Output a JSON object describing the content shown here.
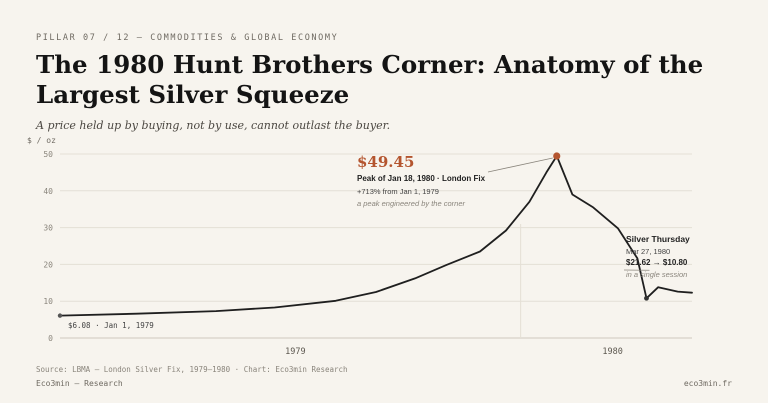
{
  "header": {
    "eyebrow": "PILLAR 07 / 12 — COMMODITIES & GLOBAL ECONOMY",
    "title": "The 1980 Hunt Brothers Corner: Anatomy of the Largest Silver Squeeze",
    "subtitle": "A price held up by buying, not by use, cannot outlast the buyer."
  },
  "annotations": {
    "peak_value": "$49.45",
    "peak_label": "Peak of Jan 18, 1980 · London Fix",
    "peak_pct": "+713% from Jan 1, 1979",
    "peak_note": "a peak engineered by the corner",
    "thursday_title": "Silver Thursday",
    "thursday_date": "Mar 27, 1980",
    "thursday_move": "$21.62 → $10.80",
    "thursday_note": "in a single session",
    "start_label": "$6.08 · Jan 1, 1979"
  },
  "footer": {
    "source": "Source: LBMA — London Silver Fix, 1979–1980 · Chart: Eco3min Research",
    "brand": "Eco3min — Research",
    "site": "eco3min.fr"
  },
  "colors": {
    "background": "#f7f4ee",
    "line": "#1f1f1f",
    "accent": "#b4552f",
    "grid": "#e4dfd5",
    "muted": "#8a857c"
  },
  "chart_data": {
    "type": "line",
    "ylabel": "$ / oz",
    "ylim": [
      0,
      50
    ],
    "yticks": [
      0,
      10,
      20,
      30,
      40,
      50
    ],
    "xlim": [
      "1979-01-01",
      "1980-05-01"
    ],
    "xticks": [
      "1979",
      "1980"
    ],
    "grid": true,
    "series": [
      {
        "x": [
          "1979-01-01",
          "1979-03-01",
          "1979-05-01",
          "1979-06-15",
          "1979-08-01",
          "1979-09-01",
          "1979-10-01",
          "1979-10-25",
          "1979-11-20",
          "1979-12-10",
          "1979-12-28",
          "1980-01-10",
          "1980-01-18",
          "1980-01-30",
          "1980-02-15",
          "1980-03-05",
          "1980-03-20",
          "1980-03-27",
          "1980-04-05",
          "1980-04-20",
          "1980-05-01"
        ],
        "y": [
          6.08,
          6.6,
          7.3,
          8.3,
          10.1,
          12.5,
          16.2,
          19.8,
          23.5,
          29.2,
          37.0,
          45.0,
          49.45,
          39.0,
          35.5,
          29.8,
          21.62,
          10.8,
          13.8,
          12.6,
          12.3
        ]
      }
    ],
    "highlights": [
      {
        "x": "1980-01-18",
        "y": 49.45
      },
      {
        "x": "1980-03-27",
        "y": 10.8
      }
    ]
  }
}
